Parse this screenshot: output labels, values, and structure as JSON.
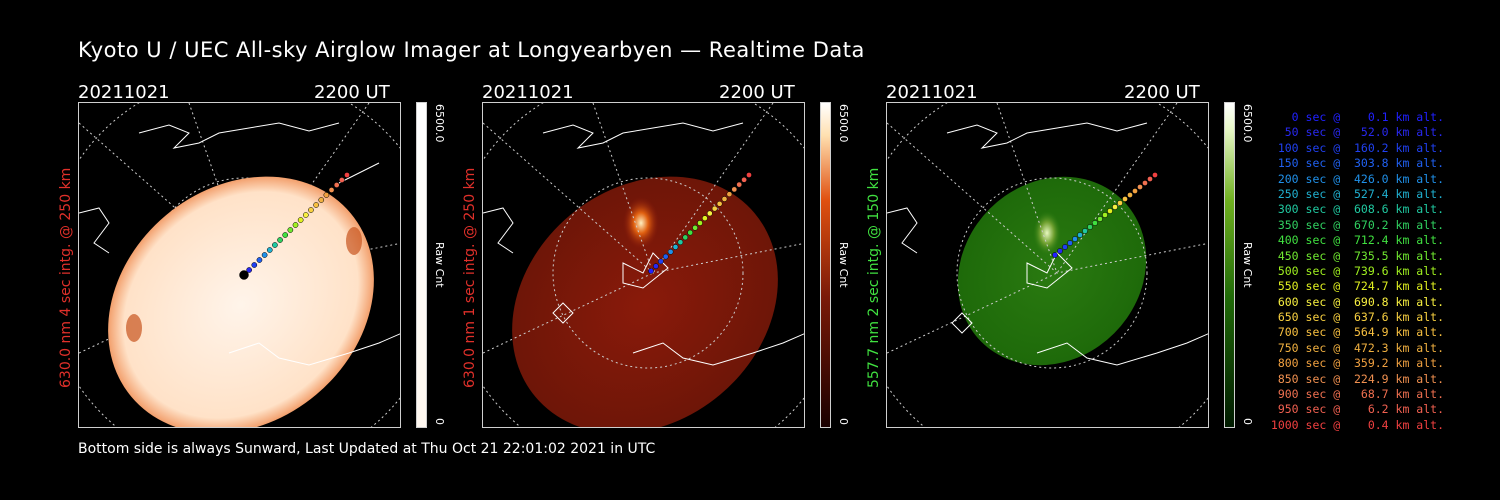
{
  "title": "Kyoto U / UEC All-sky Airglow Imager at Longyearbyen — Realtime Data",
  "footer": "Bottom side is always Sunward, Last Updated at Thu Oct 21 22:01:02 2021 in UTC",
  "colors": {
    "panel1_label": "#e0302a",
    "panel2_label": "#e0302a",
    "panel3_label": "#40e040"
  },
  "panels": [
    {
      "date": "20211021",
      "time": "2200 UT",
      "label": "630.0 nm 4 sec intg. @ 250 km",
      "colorbar_max": "6500.0",
      "colorbar_unit": "Raw Cnt",
      "colorbar_min": "0"
    },
    {
      "date": "20211021",
      "time": "2200 UT",
      "label": "630.0 nm 1 sec intg. @ 250 km",
      "colorbar_max": "6500.0",
      "colorbar_unit": "Raw Cnt",
      "colorbar_min": "0"
    },
    {
      "date": "20211021",
      "time": "2200 UT",
      "label": "557.7 nm 2 sec intg. @ 150 km",
      "colorbar_max": "6500.0",
      "colorbar_unit": "Raw Cnt",
      "colorbar_min": "0"
    }
  ],
  "legend": [
    {
      "text": "   0 sec @    0.1 km alt.",
      "color": "#2020ff"
    },
    {
      "text": "  50 sec @   52.0 km alt.",
      "color": "#2828f0"
    },
    {
      "text": " 100 sec @  160.2 km alt.",
      "color": "#2040f0"
    },
    {
      "text": " 150 sec @  303.8 km alt.",
      "color": "#2060f0"
    },
    {
      "text": " 200 sec @  426.0 km alt.",
      "color": "#2090e8"
    },
    {
      "text": " 250 sec @  527.4 km alt.",
      "color": "#20b0d0"
    },
    {
      "text": " 300 sec @  608.6 km alt.",
      "color": "#20c8a0"
    },
    {
      "text": " 350 sec @  670.2 km alt.",
      "color": "#30d060"
    },
    {
      "text": " 400 sec @  712.4 km alt.",
      "color": "#40e040"
    },
    {
      "text": " 450 sec @  735.5 km alt.",
      "color": "#70e830"
    },
    {
      "text": " 500 sec @  739.6 km alt.",
      "color": "#a0f020"
    },
    {
      "text": " 550 sec @  724.7 km alt.",
      "color": "#e0f020"
    },
    {
      "text": " 600 sec @  690.8 km alt.",
      "color": "#f8f040"
    },
    {
      "text": " 650 sec @  637.6 km alt.",
      "color": "#f8d040"
    },
    {
      "text": " 700 sec @  564.9 km alt.",
      "color": "#f8c040"
    },
    {
      "text": " 750 sec @  472.3 km alt.",
      "color": "#f0b040"
    },
    {
      "text": " 800 sec @  359.2 km alt.",
      "color": "#f0a040"
    },
    {
      "text": " 850 sec @  224.9 km alt.",
      "color": "#f09050"
    },
    {
      "text": " 900 sec @   68.7 km alt.",
      "color": "#f07050"
    },
    {
      "text": " 950 sec @    6.2 km alt.",
      "color": "#f06050"
    },
    {
      "text": "1000 sec @    0.4 km alt.",
      "color": "#f04040"
    }
  ]
}
